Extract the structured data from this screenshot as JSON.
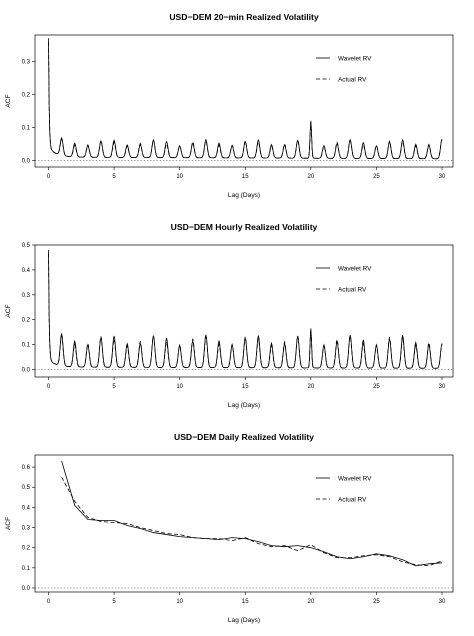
{
  "chart_data": [
    {
      "type": "line",
      "title": "USD−DEM 20−min Realized Volatility",
      "xlabel": "Lag (Days)",
      "ylabel": "ACF",
      "xlim": [
        0,
        30
      ],
      "ylim": [
        -0.02,
        0.38
      ],
      "x_ticks": [
        "0",
        "5",
        "10",
        "15",
        "20",
        "25",
        "30"
      ],
      "y_ticks": [
        "0.0",
        "0.1",
        "0.2",
        "0.3"
      ],
      "legend_position": "top-right",
      "zero_line": "dotted",
      "series": [
        {
          "name": "Wavelet RV",
          "style": "solid"
        },
        {
          "name": "Actual RV",
          "style": "dashed"
        }
      ],
      "pattern": {
        "kind": "intraday",
        "lag0": 0.37,
        "trough_base": 0.01,
        "peak_ratio": 0.17,
        "trough_ratio": 0.04,
        "day20_spike": 0.12,
        "end_peak": 0.065
      }
    },
    {
      "type": "line",
      "title": "USD−DEM Hourly Realized Volatility",
      "xlabel": "Lag (Days)",
      "ylabel": "ACF",
      "xlim": [
        0,
        30
      ],
      "ylim": [
        -0.03,
        0.5
      ],
      "x_ticks": [
        "0",
        "5",
        "10",
        "15",
        "20",
        "25",
        "30"
      ],
      "y_ticks": [
        "0.0",
        "0.1",
        "0.2",
        "0.3",
        "0.4",
        "0.5"
      ],
      "legend_position": "top-right",
      "zero_line": "dotted",
      "series": [
        {
          "name": "Wavelet RV",
          "style": "solid"
        },
        {
          "name": "Actual RV",
          "style": "dashed"
        }
      ],
      "pattern": {
        "kind": "intraday",
        "lag0": 0.48,
        "trough_base": 0.01,
        "peak_ratio": 0.29,
        "trough_ratio": 0.04,
        "day20_spike": 0.165,
        "end_peak": 0.105
      }
    },
    {
      "type": "line",
      "title": "USD−DEM Daily Realized Volatility",
      "xlabel": "Lag (Days)",
      "ylabel": "ACF",
      "xlim": [
        0,
        30
      ],
      "ylim": [
        -0.02,
        0.66
      ],
      "x_ticks": [
        "0",
        "5",
        "10",
        "15",
        "20",
        "25",
        "30"
      ],
      "y_ticks": [
        "0.0",
        "0.1",
        "0.2",
        "0.3",
        "0.4",
        "0.5",
        "0.6"
      ],
      "legend_position": "top-right",
      "zero_line": "dotted",
      "x": [
        1,
        2,
        3,
        4,
        5,
        6,
        7,
        8,
        9,
        10,
        11,
        12,
        13,
        14,
        15,
        16,
        17,
        18,
        19,
        20,
        21,
        22,
        23,
        24,
        25,
        26,
        27,
        28,
        29,
        30
      ],
      "series": [
        {
          "name": "Wavelet RV",
          "style": "solid",
          "values": [
            0.63,
            0.41,
            0.34,
            0.335,
            0.335,
            0.31,
            0.295,
            0.275,
            0.265,
            0.255,
            0.25,
            0.245,
            0.24,
            0.25,
            0.245,
            0.23,
            0.21,
            0.205,
            0.21,
            0.2,
            0.18,
            0.155,
            0.145,
            0.155,
            0.17,
            0.16,
            0.14,
            0.11,
            0.12,
            0.125
          ]
        },
        {
          "name": "Actual RV",
          "style": "dashed",
          "values": [
            0.55,
            0.43,
            0.35,
            0.33,
            0.325,
            0.32,
            0.3,
            0.285,
            0.27,
            0.265,
            0.25,
            0.245,
            0.245,
            0.235,
            0.25,
            0.22,
            0.205,
            0.21,
            0.185,
            0.215,
            0.175,
            0.15,
            0.15,
            0.16,
            0.165,
            0.155,
            0.13,
            0.115,
            0.11,
            0.135
          ]
        }
      ]
    }
  ]
}
